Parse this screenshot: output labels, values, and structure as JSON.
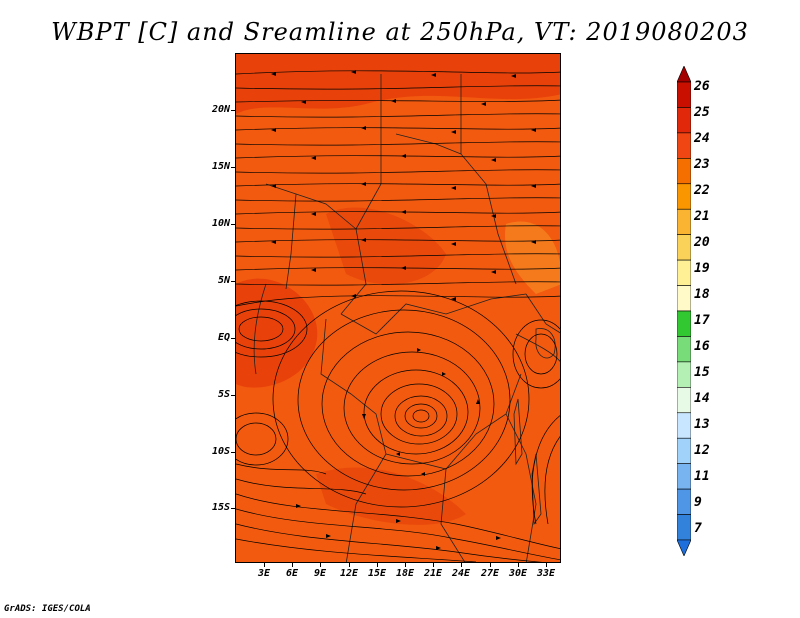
{
  "title": "WBPT [C] and Sreamline at 250hPa, VT: 2019080203",
  "credit": "GrADS: IGES/COLA",
  "lat_labels": [
    "20N",
    "15N",
    "10N",
    "5N",
    "EQ",
    "5S",
    "10S",
    "15S"
  ],
  "lon_labels": [
    "3E",
    "6E",
    "9E",
    "12E",
    "15E",
    "18E",
    "21E",
    "24E",
    "27E",
    "30E",
    "33E"
  ],
  "colorbar": {
    "labels": [
      "26",
      "25",
      "24",
      "23",
      "22",
      "21",
      "20",
      "19",
      "18",
      "17",
      "16",
      "15",
      "14",
      "13",
      "12",
      "11",
      "9",
      "7"
    ],
    "colors": [
      "#a50000",
      "#c80f00",
      "#e1280a",
      "#f04614",
      "#f56e00",
      "#fa9600",
      "#fab432",
      "#fad25a",
      "#fff096",
      "#fffac8",
      "#32c832",
      "#78dc78",
      "#b4f0b4",
      "#e6fae6",
      "#c8e6ff",
      "#a0d2fa",
      "#78b4f0",
      "#5096e6",
      "#3282dc",
      "#1e6edc"
    ]
  },
  "map": {
    "fill_colors": [
      "#f25a0f",
      "#e8420a",
      "#f57a1c"
    ],
    "vortex_label": "cyclonic circulation near 18E 7S"
  }
}
